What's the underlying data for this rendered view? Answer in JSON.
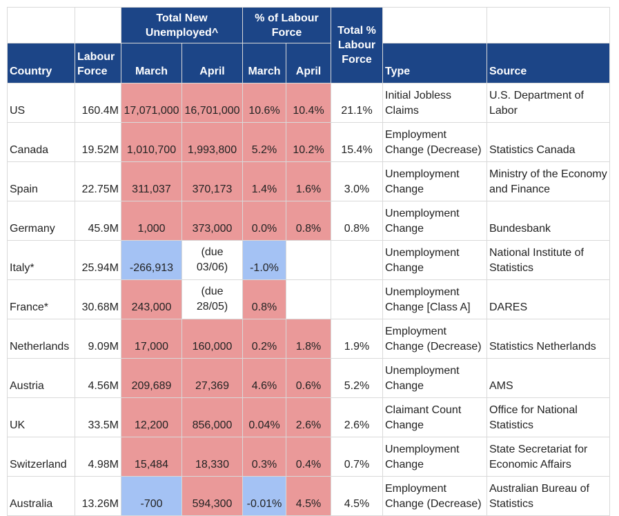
{
  "headers": {
    "country": "Country",
    "labour_force": "Labour Force",
    "total_new_unemployed": "Total New Unemployed^",
    "pct_labour_force": "% of Labour Force",
    "total_pct": "Total % Labour Force",
    "type": "Type",
    "source": "Source",
    "march": "March",
    "april": "April"
  },
  "rows": [
    {
      "country": "US",
      "labour_force": "160.4M",
      "new_march": "17,071,000",
      "new_april": "16,701,000",
      "pct_march": "10.6%",
      "pct_april": "10.4%",
      "total": "21.1%",
      "type": "Initial Jobless Claims",
      "source": "U.S. Department of Labor"
    },
    {
      "country": "Canada",
      "labour_force": "19.52M",
      "new_march": "1,010,700",
      "new_april": "1,993,800",
      "pct_march": "5.2%",
      "pct_april": "10.2%",
      "total": "15.4%",
      "type": "Employment Change (Decrease)",
      "source": "Statistics Canada"
    },
    {
      "country": "Spain",
      "labour_force": "22.75M",
      "new_march": "311,037",
      "new_april": "370,173",
      "pct_march": "1.4%",
      "pct_april": "1.6%",
      "total": "3.0%",
      "type": "Unemployment Change",
      "source": "Ministry of the Economy and Finance"
    },
    {
      "country": "Germany",
      "labour_force": "45.9M",
      "new_march": "1,000",
      "new_april": "373,000",
      "pct_march": "0.0%",
      "pct_april": "0.8%",
      "total": "0.8%",
      "type": "Unemployment Change",
      "source": "Bundesbank"
    },
    {
      "country": "Italy*",
      "labour_force": "25.94M",
      "new_march": "-266,913",
      "new_april": "(due 03/06)",
      "pct_march": "-1.0%",
      "pct_april": "",
      "total": "",
      "type": "Unemployment Change",
      "source": "National Institute of Statistics"
    },
    {
      "country": "France*",
      "labour_force": "30.68M",
      "new_march": "243,000",
      "new_april": "(due 28/05)",
      "pct_march": "0.8%",
      "pct_april": "",
      "total": "",
      "type": "Unemployment Change [Class A]",
      "source": "DARES"
    },
    {
      "country": "Netherlands",
      "labour_force": "9.09M",
      "new_march": "17,000",
      "new_april": "160,000",
      "pct_march": "0.2%",
      "pct_april": "1.8%",
      "total": "1.9%",
      "type": "Employment Change (Decrease)",
      "source": "Statistics Netherlands"
    },
    {
      "country": "Austria",
      "labour_force": "4.56M",
      "new_march": "209,689",
      "new_april": "27,369",
      "pct_march": "4.6%",
      "pct_april": "0.6%",
      "total": "5.2%",
      "type": "Unemployment Change",
      "source": "AMS"
    },
    {
      "country": "UK",
      "labour_force": "33.5M",
      "new_march": "12,200",
      "new_april": "856,000",
      "pct_march": "0.04%",
      "pct_april": "2.6%",
      "total": "2.6%",
      "type": "Claimant Count Change",
      "source": "Office for National Statistics"
    },
    {
      "country": "Switzerland",
      "labour_force": "4.98M",
      "new_march": "15,484",
      "new_april": "18,330",
      "pct_march": "0.3%",
      "pct_april": "0.4%",
      "total": "0.7%",
      "type": "Unemployment Change",
      "source": "State Secretariat for Economic Affairs"
    },
    {
      "country": "Australia",
      "labour_force": "13.26M",
      "new_march": "-700",
      "new_april": "594,300",
      "pct_march": "-0.01%",
      "pct_april": "4.5%",
      "total": "4.5%",
      "type": "Employment Change (Decrease)",
      "source": "Australian Bureau of Statistics"
    }
  ]
}
